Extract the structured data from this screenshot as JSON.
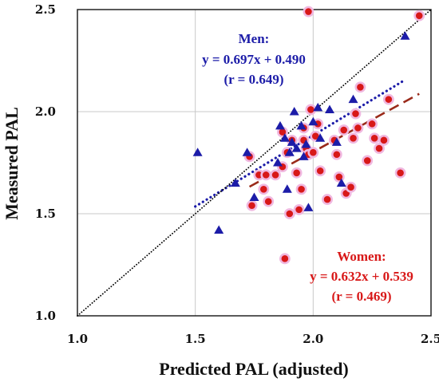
{
  "chart_data": {
    "type": "scatter",
    "title": "",
    "xlabel": "Predicted PAL (adjusted)",
    "ylabel": "Measured PAL",
    "xlim": [
      1.0,
      2.5
    ],
    "ylim": [
      1.0,
      2.5
    ],
    "x_ticks": [
      "1.0",
      "1.5",
      "2.0",
      "2.5"
    ],
    "y_ticks": [
      "1.0",
      "1.5",
      "2.0",
      "2.5"
    ],
    "grid": true,
    "colors": {
      "men": "#1c1ca8",
      "women": "#d81818",
      "women_halo": "#f0b8e0",
      "women_line": "#9a2a1a",
      "identity": "#000000",
      "grid": "#c8c8c8"
    },
    "series": [
      {
        "marker": "triangle",
        "points": [
          [
            1.51,
            1.8
          ],
          [
            1.6,
            1.42
          ],
          [
            1.67,
            1.65
          ],
          [
            1.72,
            1.8
          ],
          [
            1.75,
            1.58
          ],
          [
            1.85,
            1.75
          ],
          [
            1.86,
            1.93
          ],
          [
            1.88,
            1.87
          ],
          [
            1.89,
            1.62
          ],
          [
            1.9,
            1.8
          ],
          [
            1.91,
            1.85
          ],
          [
            1.92,
            2.0
          ],
          [
            1.93,
            1.82
          ],
          [
            1.95,
            1.93
          ],
          [
            1.96,
            1.78
          ],
          [
            1.97,
            1.84
          ],
          [
            1.98,
            1.53
          ],
          [
            2.0,
            1.95
          ],
          [
            2.02,
            2.02
          ],
          [
            2.03,
            1.87
          ],
          [
            2.07,
            2.01
          ],
          [
            2.1,
            1.85
          ],
          [
            2.12,
            1.65
          ],
          [
            2.17,
            2.06
          ],
          [
            2.39,
            2.37
          ]
        ]
      },
      {
        "marker": "circle",
        "points": [
          [
            1.73,
            1.78
          ],
          [
            1.74,
            1.54
          ],
          [
            1.77,
            1.69
          ],
          [
            1.79,
            1.62
          ],
          [
            1.8,
            1.69
          ],
          [
            1.81,
            1.56
          ],
          [
            1.84,
            1.69
          ],
          [
            1.87,
            1.9
          ],
          [
            1.87,
            1.73
          ],
          [
            1.88,
            1.28
          ],
          [
            1.89,
            1.8
          ],
          [
            1.9,
            1.5
          ],
          [
            1.91,
            1.86
          ],
          [
            1.93,
            1.7
          ],
          [
            1.94,
            1.52
          ],
          [
            1.95,
            1.62
          ],
          [
            1.96,
            1.92
          ],
          [
            1.96,
            1.86
          ],
          [
            1.97,
            1.82
          ],
          [
            1.98,
            1.79
          ],
          [
            1.98,
            2.49
          ],
          [
            1.99,
            2.01
          ],
          [
            2.0,
            1.8
          ],
          [
            2.01,
            1.88
          ],
          [
            2.02,
            1.94
          ],
          [
            2.03,
            1.71
          ],
          [
            2.06,
            1.57
          ],
          [
            2.09,
            1.86
          ],
          [
            2.1,
            1.79
          ],
          [
            2.11,
            1.68
          ],
          [
            2.13,
            1.91
          ],
          [
            2.14,
            1.6
          ],
          [
            2.16,
            1.63
          ],
          [
            2.17,
            1.87
          ],
          [
            2.18,
            1.99
          ],
          [
            2.19,
            1.92
          ],
          [
            2.2,
            2.12
          ],
          [
            2.23,
            1.76
          ],
          [
            2.25,
            1.94
          ],
          [
            2.26,
            1.87
          ],
          [
            2.28,
            1.82
          ],
          [
            2.3,
            1.86
          ],
          [
            2.32,
            2.06
          ],
          [
            2.37,
            1.7
          ],
          [
            2.45,
            2.47
          ]
        ]
      }
    ],
    "fit_lines": [
      {
        "style": "dotted",
        "slope": 0.697,
        "intercept": 0.49,
        "x_range": [
          1.5,
          2.39
        ]
      },
      {
        "style": "dashed",
        "slope": 0.632,
        "intercept": 0.539,
        "x_range": [
          1.73,
          2.45
        ]
      },
      {
        "style": "dotted",
        "slope": 1.0,
        "intercept": 0.0,
        "x_range": [
          1.0,
          2.5
        ]
      }
    ],
    "annotations": {
      "men": {
        "label": "Men:",
        "equation": "y = 0.697x + 0.490",
        "r": "(r = 0.649)"
      },
      "women": {
        "label": "Women:",
        "equation": "y = 0.632x + 0.539",
        "r": "(r = 0.469)"
      }
    }
  }
}
